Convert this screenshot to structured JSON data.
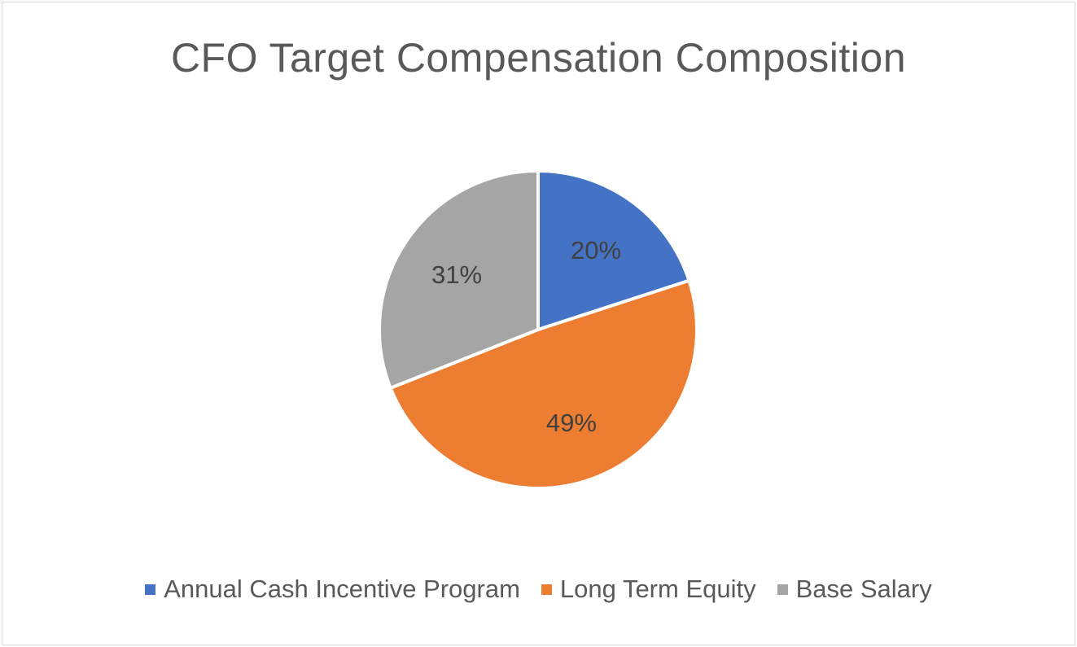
{
  "chart_data": {
    "type": "pie",
    "title": "CFO Target Compensation Composition",
    "categories": [
      "Annual Cash Incentive Program",
      "Long Term Equity",
      "Base Salary"
    ],
    "values": [
      20,
      49,
      31
    ],
    "labels": [
      "20%",
      "49%",
      "31%"
    ],
    "colors": [
      "#4472c4",
      "#ed7d31",
      "#a5a5a5"
    ],
    "start_angle": "12 o'clock, clockwise",
    "legend_position": "bottom"
  },
  "legend": [
    {
      "label": "Annual Cash Incentive Program",
      "color": "#4472c4"
    },
    {
      "label": "Long Term Equity",
      "color": "#ed7d31"
    },
    {
      "label": "Base Salary",
      "color": "#a5a5a5"
    }
  ]
}
